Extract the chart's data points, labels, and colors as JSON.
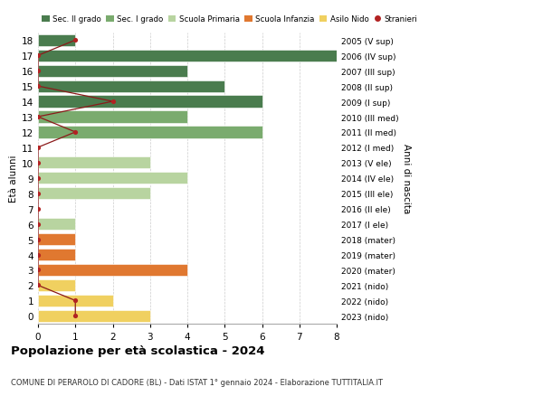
{
  "ages": [
    18,
    17,
    16,
    15,
    14,
    13,
    12,
    11,
    10,
    9,
    8,
    7,
    6,
    5,
    4,
    3,
    2,
    1,
    0
  ],
  "right_labels": [
    "2005 (V sup)",
    "2006 (IV sup)",
    "2007 (III sup)",
    "2008 (II sup)",
    "2009 (I sup)",
    "2010 (III med)",
    "2011 (II med)",
    "2012 (I med)",
    "2013 (V ele)",
    "2014 (IV ele)",
    "2015 (III ele)",
    "2016 (II ele)",
    "2017 (I ele)",
    "2018 (mater)",
    "2019 (mater)",
    "2020 (mater)",
    "2021 (nido)",
    "2022 (nido)",
    "2023 (nido)"
  ],
  "bar_values": [
    1,
    8,
    4,
    5,
    6,
    4,
    6,
    0,
    3,
    4,
    3,
    0,
    1,
    1,
    1,
    4,
    1,
    2,
    3
  ],
  "bar_colors": [
    "#4a7c4e",
    "#4a7c4e",
    "#4a7c4e",
    "#4a7c4e",
    "#4a7c4e",
    "#7aab6e",
    "#7aab6e",
    "#7aab6e",
    "#b8d4a0",
    "#b8d4a0",
    "#b8d4a0",
    "#b8d4a0",
    "#b8d4a0",
    "#e07830",
    "#e07830",
    "#e07830",
    "#f0d060",
    "#f0d060",
    "#f0d060"
  ],
  "stranieri_values": [
    1,
    0,
    0,
    0,
    2,
    0,
    1,
    0,
    0,
    0,
    0,
    0,
    0,
    0,
    0,
    0,
    0,
    1,
    1
  ],
  "title": "Popolazione per età scolastica - 2024",
  "subtitle": "COMUNE DI PERAROLO DI CADORE (BL) - Dati ISTAT 1° gennaio 2024 - Elaborazione TUTTITALIA.IT",
  "ylabel": "Età alunni",
  "ylabel_right": "Anni di nascita",
  "xlim": [
    0,
    8
  ],
  "legend_labels": [
    "Sec. II grado",
    "Sec. I grado",
    "Scuola Primaria",
    "Scuola Infanzia",
    "Asilo Nido",
    "Stranieri"
  ],
  "legend_colors": [
    "#4a7c4e",
    "#7aab6e",
    "#b8d4a0",
    "#e07830",
    "#f0d060",
    "#b22222"
  ],
  "bg_color": "#ffffff",
  "grid_color": "#cccccc"
}
